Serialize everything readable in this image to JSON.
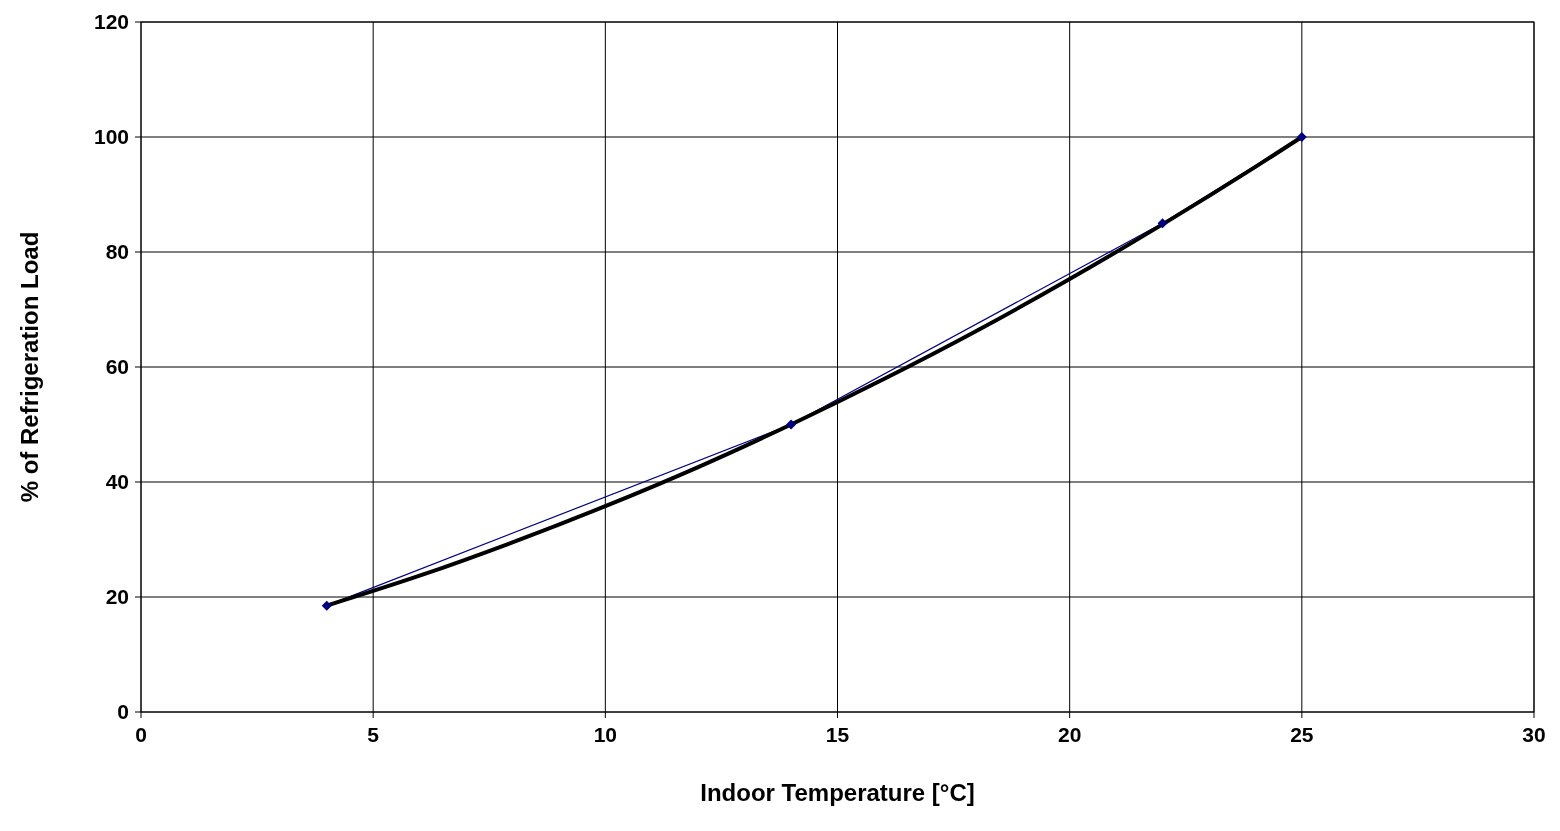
{
  "chart_data": {
    "type": "line",
    "xlabel": "Indoor Temperature [°C]",
    "ylabel": "% of Refrigeration Load",
    "xlim": [
      0,
      30
    ],
    "xticks": [
      0,
      5,
      10,
      15,
      20,
      25,
      30
    ],
    "ylim": [
      0,
      120
    ],
    "yticks": [
      0,
      20,
      40,
      60,
      80,
      100,
      120
    ],
    "grid": true,
    "series": [
      {
        "color": "#000080",
        "x": [
          4,
          14,
          22,
          25
        ],
        "values": [
          18.5,
          50,
          85,
          100
        ],
        "marker": "diamond",
        "line_style": "solid"
      },
      {
        "color": "#000000",
        "x": [
          4,
          6,
          8,
          10,
          12,
          14,
          16,
          18,
          20,
          22,
          24,
          25
        ],
        "values": [
          18.5,
          23.7,
          29.5,
          35.8,
          42.6,
          50,
          57.9,
          66.3,
          75.3,
          84.8,
          94.8,
          100
        ],
        "marker": "none",
        "line_style": "solid"
      }
    ]
  }
}
